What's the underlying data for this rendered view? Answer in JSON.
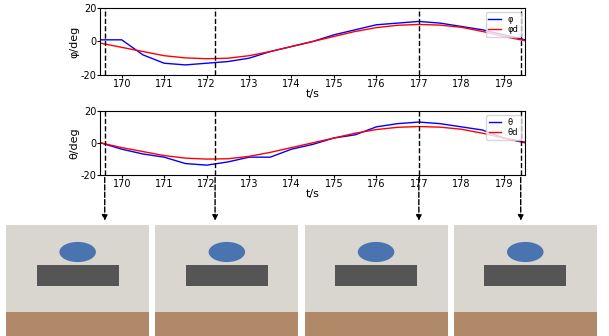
{
  "chart_data": [
    {
      "type": "line",
      "y_label": "φ/deg",
      "x_label": "t/s",
      "xlim": [
        169.5,
        179.5
      ],
      "xticks": [
        170,
        171,
        172,
        173,
        174,
        175,
        176,
        177,
        178,
        179
      ],
      "ylim": [
        -20,
        20
      ],
      "yticks": [
        -20,
        0,
        20
      ],
      "grid": false,
      "legend": "upper right",
      "x": [
        169.5,
        170,
        170.5,
        171,
        171.5,
        172,
        172.5,
        173,
        173.5,
        174,
        174.5,
        175,
        175.5,
        176,
        176.5,
        177,
        177.5,
        178,
        178.5,
        179,
        179.5
      ],
      "series": [
        {
          "name": "φ",
          "color": "#0000ff",
          "values": [
            1,
            1,
            -8,
            -13,
            -14,
            -13,
            -12,
            -10,
            -6,
            -3,
            0,
            4,
            7,
            10,
            11,
            12,
            11,
            9,
            7,
            4,
            1
          ]
        },
        {
          "name": "φd",
          "color": "#ff0000",
          "values": [
            -1,
            -3.5,
            -6,
            -8.5,
            -9.8,
            -10.3,
            -10,
            -8.5,
            -6,
            -3,
            0,
            3,
            6,
            8.3,
            9.7,
            10.2,
            9.8,
            8.5,
            6,
            3,
            0.5
          ]
        }
      ]
    },
    {
      "type": "line",
      "y_label": "θ/deg",
      "x_label": "t/s",
      "xlim": [
        169.5,
        179.5
      ],
      "xticks": [
        170,
        171,
        172,
        173,
        174,
        175,
        176,
        177,
        178,
        179
      ],
      "ylim": [
        -20,
        20
      ],
      "yticks": [
        -20,
        0,
        20
      ],
      "grid": false,
      "legend": "upper right",
      "x": [
        169.5,
        170,
        170.5,
        171,
        171.5,
        172,
        172.5,
        173,
        173.5,
        174,
        174.5,
        175,
        175.5,
        176,
        176.5,
        177,
        177.5,
        178,
        178.5,
        179,
        179.5
      ],
      "series": [
        {
          "name": "θ",
          "color": "#0000ff",
          "values": [
            0,
            -4,
            -7,
            -9,
            -13,
            -14,
            -12,
            -9,
            -9,
            -4,
            -1,
            3,
            5,
            10,
            12,
            13,
            12,
            10,
            8,
            3,
            0
          ]
        },
        {
          "name": "θd",
          "color": "#ff0000",
          "values": [
            0,
            -3,
            -5.5,
            -8,
            -9.6,
            -10.2,
            -10,
            -8.5,
            -6,
            -3,
            0,
            3,
            6,
            8.3,
            9.7,
            10.2,
            9.8,
            8.5,
            6,
            3,
            0.5
          ]
        }
      ]
    }
  ],
  "snapshot_times": [
    169.6,
    172.2,
    177,
    179.4
  ]
}
